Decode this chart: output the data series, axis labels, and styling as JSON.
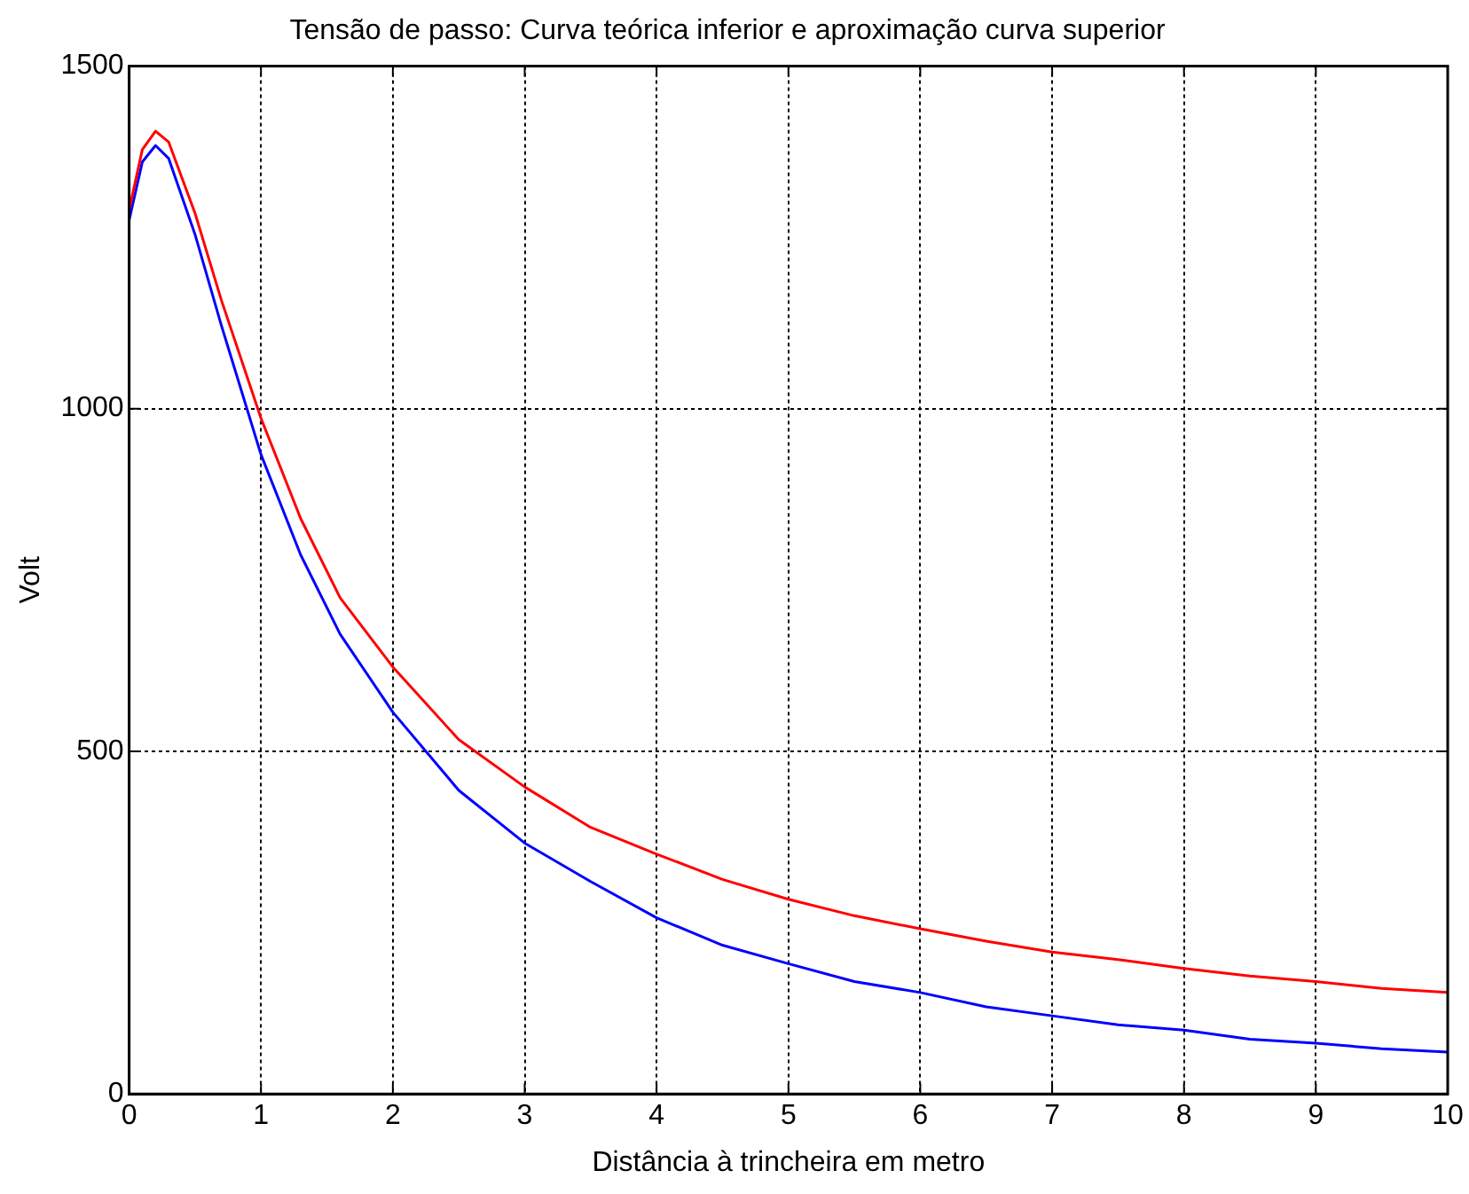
{
  "chart_data": {
    "type": "line",
    "title": "Tensão de passo: Curva teórica inferior e aproximação curva superior",
    "xlabel": "Distância à trincheira em metro",
    "ylabel": "Volt",
    "x": [
      0,
      0.1,
      0.2,
      0.3,
      0.5,
      0.7,
      1,
      1.3,
      1.6,
      2,
      2.5,
      3,
      3.5,
      4,
      4.5,
      5,
      5.5,
      6,
      6.5,
      7,
      7.5,
      8,
      8.5,
      9,
      9.5,
      10
    ],
    "series": [
      {
        "color": "#ff0000",
        "values": [
          1290,
          1378,
          1405,
          1389,
          1285,
          1158,
          986,
          840,
          724,
          623,
          517,
          448,
          389,
          350,
          313,
          284,
          260,
          241,
          223,
          207,
          196,
          183,
          172,
          164,
          154,
          148
        ]
      },
      {
        "color": "#0000ff",
        "values": [
          1275,
          1360,
          1384,
          1365,
          1254,
          1121,
          933,
          787,
          671,
          557,
          443,
          366,
          310,
          257,
          217,
          190,
          164,
          148,
          127,
          114,
          101,
          93,
          80,
          74,
          66,
          61
        ]
      }
    ],
    "xlim": [
      0,
      10
    ],
    "xticks": [
      0,
      1,
      2,
      3,
      4,
      5,
      6,
      7,
      8,
      9,
      10
    ],
    "ylim": [
      0,
      1500
    ],
    "yticks": [
      0,
      500,
      1000,
      1500
    ],
    "grid": true,
    "legend": false,
    "marker": "none",
    "line_style": "solid"
  }
}
